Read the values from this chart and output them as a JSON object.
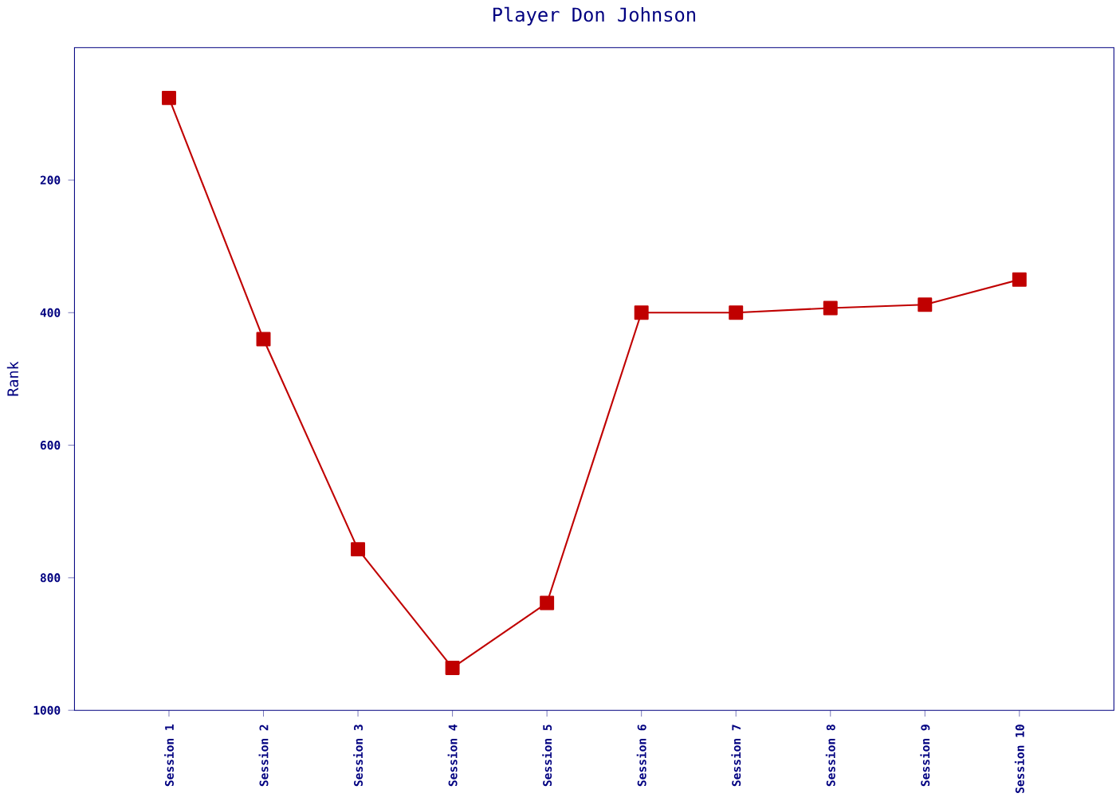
{
  "chart_data": {
    "type": "line",
    "title": "Player Don Johnson",
    "ylabel": "Rank",
    "categories": [
      "Session 1",
      "Session 2",
      "Session 3",
      "Session 4",
      "Session 5",
      "Session 6",
      "Session 7",
      "Session 8",
      "Session 9",
      "Session 10"
    ],
    "series": [
      {
        "color": "#c00000",
        "values": [
          76,
          440,
          757,
          936,
          838,
          400,
          400,
          393,
          388,
          350
        ]
      }
    ],
    "ylim": [
      1000,
      0
    ],
    "yticks": [
      200,
      400,
      600,
      800,
      1000
    ],
    "marker": "square",
    "line_style": "solid",
    "grid": false
  }
}
